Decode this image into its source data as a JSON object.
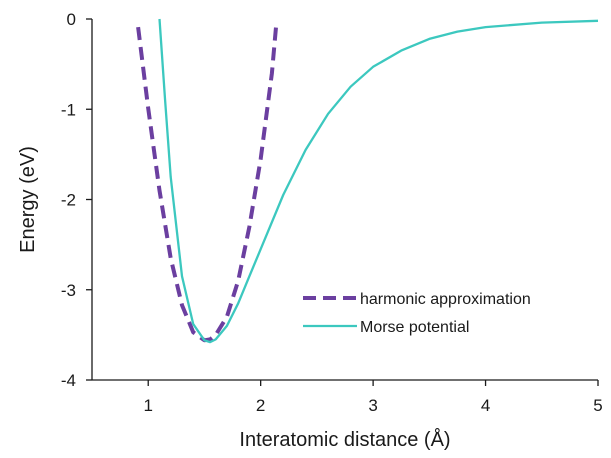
{
  "chart_data": {
    "type": "line",
    "xlabel": "Interatomic distance (Å)",
    "ylabel": "Energy (eV)",
    "xlim": [
      0.5,
      5
    ],
    "ylim": [
      -4,
      0
    ],
    "xticks": [
      1,
      2,
      3,
      4,
      5
    ],
    "xtick_labels": [
      "1",
      "2",
      "3",
      "4",
      "5"
    ],
    "yticks": [
      0,
      -1,
      -2,
      -3,
      -4
    ],
    "ytick_labels": [
      "0",
      "-1",
      "-2",
      "-3",
      "-4"
    ],
    "grid": false,
    "legend_position": "bottom-right",
    "series": [
      {
        "name": "harmonic approximation",
        "color": "#6b3fa0",
        "style": "dashed",
        "x": [
          0.91,
          1.0,
          1.1,
          1.2,
          1.3,
          1.4,
          1.5,
          1.55,
          1.6,
          1.7,
          1.8,
          1.9,
          2.0,
          2.1,
          2.14
        ],
        "y": [
          -0.09,
          -0.99,
          -1.9,
          -2.65,
          -3.17,
          -3.47,
          -3.56,
          -3.55,
          -3.5,
          -3.3,
          -2.9,
          -2.3,
          -1.55,
          -0.6,
          -0.04
        ]
      },
      {
        "name": "Morse potential",
        "color": "#3cc8bf",
        "style": "solid",
        "x": [
          1.1,
          1.15,
          1.2,
          1.3,
          1.4,
          1.5,
          1.55,
          1.6,
          1.7,
          1.8,
          1.9,
          2.0,
          2.2,
          2.4,
          2.6,
          2.8,
          3.0,
          3.25,
          3.5,
          3.75,
          4.0,
          4.5,
          5.0
        ],
        "y": [
          0.0,
          -0.9,
          -1.75,
          -2.85,
          -3.38,
          -3.56,
          -3.58,
          -3.55,
          -3.4,
          -3.15,
          -2.85,
          -2.55,
          -1.95,
          -1.45,
          -1.05,
          -0.75,
          -0.53,
          -0.35,
          -0.22,
          -0.14,
          -0.09,
          -0.04,
          -0.02
        ]
      }
    ]
  }
}
